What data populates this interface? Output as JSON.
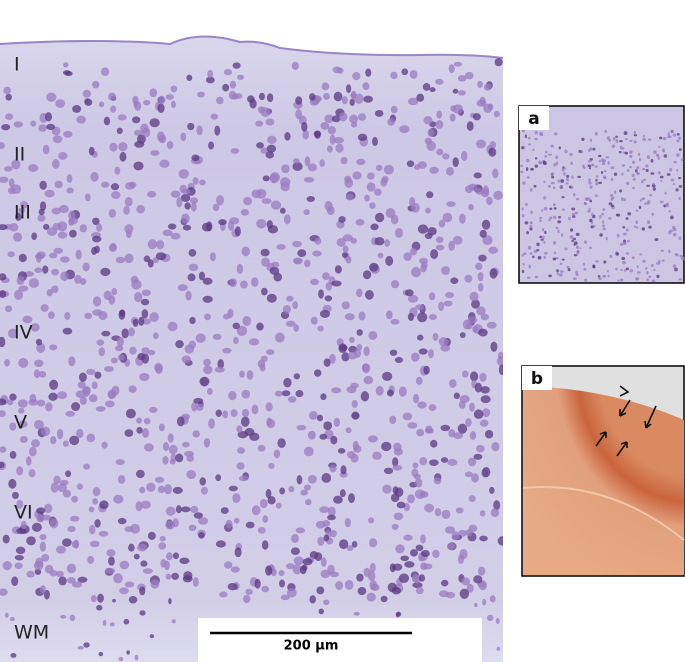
{
  "main_panel": {
    "layers": [
      "I",
      "II",
      "III",
      "IV",
      "V",
      "VI",
      "WM"
    ],
    "scale_bar": "200 µm"
  },
  "insets": [
    {
      "label": "a"
    },
    {
      "label": "b"
    }
  ]
}
